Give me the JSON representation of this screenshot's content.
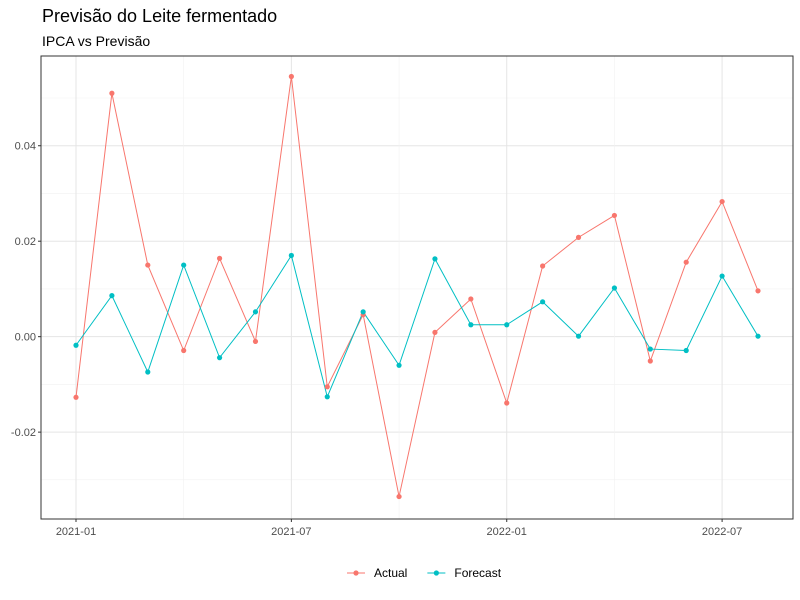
{
  "chart_data": {
    "type": "line",
    "title": "Previsão do Leite fermentado",
    "subtitle": "IPCA vs Previsão",
    "xlabel": "",
    "ylabel": "",
    "x": [
      "2021-01",
      "2021-02",
      "2021-03",
      "2021-04",
      "2021-05",
      "2021-06",
      "2021-07",
      "2021-08",
      "2021-09",
      "2021-10",
      "2021-11",
      "2021-12",
      "2022-01",
      "2022-02",
      "2022-03",
      "2022-04",
      "2022-05",
      "2022-06",
      "2022-07",
      "2022-08"
    ],
    "xticks": [
      "2021-01",
      "2021-07",
      "2022-01",
      "2022-07"
    ],
    "yticks": [
      -0.02,
      0.0,
      0.02,
      0.04
    ],
    "ytick_labels": [
      "-0.02",
      "0.00",
      "0.02",
      "0.04"
    ],
    "ylim": [
      -0.0382,
      0.0588
    ],
    "grid": true,
    "legend_position": "bottom",
    "series": [
      {
        "name": "Actual",
        "color": "#F8766D",
        "values": [
          -0.0127,
          0.051,
          0.015,
          -0.0029,
          0.0164,
          -0.001,
          0.0545,
          -0.0105,
          0.0046,
          -0.0335,
          0.0009,
          0.0079,
          -0.0139,
          0.0148,
          0.0208,
          0.0254,
          -0.0051,
          0.0156,
          0.0283,
          0.0096
        ]
      },
      {
        "name": "Forecast",
        "color": "#00BFC4",
        "values": [
          -0.0018,
          0.0086,
          -0.0074,
          0.015,
          -0.0044,
          0.0052,
          0.017,
          -0.0126,
          0.0052,
          -0.006,
          0.0163,
          0.0025,
          0.0025,
          0.0073,
          0.0001,
          0.0102,
          -0.0026,
          -0.0029,
          0.0127,
          0.0001
        ]
      }
    ]
  }
}
